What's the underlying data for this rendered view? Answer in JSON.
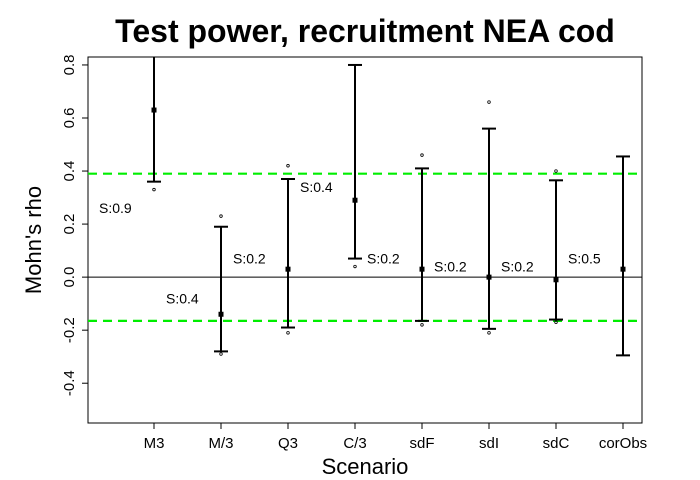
{
  "chart_data": {
    "type": "errorbar",
    "title": "Test power, recruitment NEA cod",
    "xlabel": "Scenario",
    "ylabel": "Mohn's rho",
    "categories": [
      "M3",
      "M/3",
      "Q3",
      "C/3",
      "sdF",
      "sdI",
      "sdC",
      "corObs"
    ],
    "estimate": [
      0.63,
      -0.14,
      0.03,
      0.29,
      0.03,
      0.0,
      -0.01,
      0.03
    ],
    "lower": [
      0.36,
      -0.28,
      -0.19,
      0.07,
      -0.165,
      -0.195,
      -0.16,
      -0.295
    ],
    "upper": [
      0.9,
      0.19,
      0.37,
      0.8,
      0.41,
      0.56,
      0.365,
      0.455
    ],
    "extreme_low": [
      0.33,
      -0.29,
      -0.21,
      0.04,
      -0.18,
      -0.21,
      -0.17,
      null
    ],
    "extreme_high": [
      null,
      0.23,
      0.42,
      null,
      0.46,
      0.66,
      0.4,
      null
    ],
    "s_labels": [
      "S:0.9",
      "S:0.4",
      "S:0.2",
      "S:0.4",
      "S:0.2",
      "S:0.2",
      "S:0.2",
      "S:0.5"
    ],
    "s_label_y": [
      0.26,
      -0.08,
      0.07,
      0.34,
      0.07,
      0.04,
      0.04,
      0.07
    ],
    "reference_lines": [
      {
        "y": 0.39,
        "style": "dashed",
        "color": "#00ee00"
      },
      {
        "y": -0.165,
        "style": "dashed",
        "color": "#00ee00"
      },
      {
        "y": 0.0,
        "style": "solid",
        "color": "#000000"
      }
    ],
    "ylim": [
      -0.55,
      0.83
    ],
    "yticks": [
      -0.4,
      -0.2,
      0.0,
      0.2,
      0.4,
      0.6,
      0.8
    ],
    "ytick_labels": [
      "-0.4",
      "-0.2",
      "0.0",
      "0.2",
      "0.4",
      "0.6",
      "0.8"
    ],
    "grid": false
  }
}
